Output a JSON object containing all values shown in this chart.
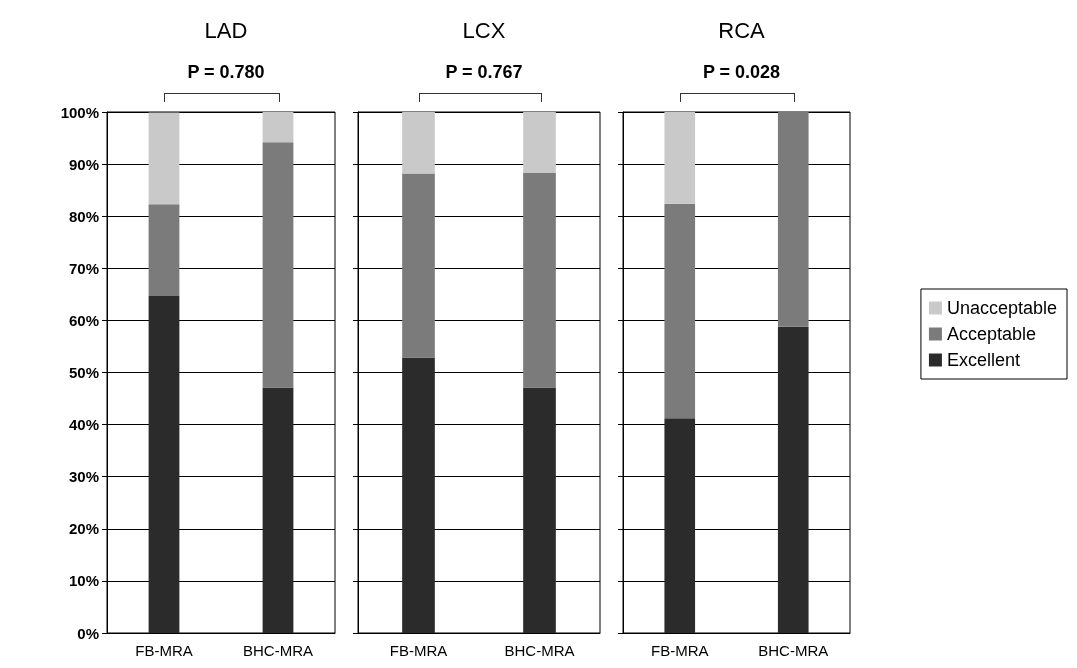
{
  "chart_data": [
    {
      "type": "bar",
      "title": "LAD",
      "annotations": [
        "P = 0.780"
      ],
      "categories": [
        "FB-MRA",
        "BHC-MRA"
      ],
      "stacked": true,
      "ylim": [
        0,
        100
      ],
      "yticks": [
        {
          "value": 0,
          "label": "0%"
        },
        {
          "value": 10,
          "label": "10%"
        },
        {
          "value": 20,
          "label": "20%"
        },
        {
          "value": 30,
          "label": "30%"
        },
        {
          "value": 40,
          "label": "40%"
        },
        {
          "value": 50,
          "label": "50%"
        },
        {
          "value": 60,
          "label": "60%"
        },
        {
          "value": 70,
          "label": "70%"
        },
        {
          "value": 80,
          "label": "80%"
        },
        {
          "value": 90,
          "label": "90%"
        },
        {
          "value": 100,
          "label": "100%"
        }
      ],
      "grid": "y",
      "series": [
        {
          "color": "#2b2b2b",
          "values": [
            64.7,
            47.1
          ]
        },
        {
          "color": "#7b7b7b",
          "values": [
            17.6,
            47.1
          ]
        },
        {
          "color": "#c9c9c9",
          "values": [
            17.6,
            5.9
          ]
        }
      ]
    },
    {
      "type": "bar",
      "title": "LCX",
      "annotations": [
        "P = 0.767"
      ],
      "categories": [
        "FB-MRA",
        "BHC-MRA"
      ],
      "stacked": true,
      "ylim": [
        0,
        100
      ],
      "yticks": [
        0,
        10,
        20,
        30,
        40,
        50,
        60,
        70,
        80,
        90,
        100
      ],
      "grid": "y",
      "tick_labels": "x",
      "series": [
        {
          "color": "#2b2b2b",
          "values": [
            52.9,
            47.1
          ]
        },
        {
          "color": "#7b7b7b",
          "values": [
            35.3,
            41.2
          ]
        },
        {
          "color": "#c9c9c9",
          "values": [
            11.8,
            11.8
          ]
        }
      ]
    },
    {
      "type": "bar",
      "title": "RCA",
      "annotations": [
        "P = 0.028"
      ],
      "categories": [
        "FB-MRA",
        "BHC-MRA"
      ],
      "stacked": true,
      "ylim": [
        0,
        100
      ],
      "yticks": [
        0,
        10,
        20,
        30,
        40,
        50,
        60,
        70,
        80,
        90,
        100
      ],
      "grid": "y",
      "legend": "right",
      "tick_labels": "x",
      "series": [
        {
          "name": "Excellent",
          "color": "#2b2b2b",
          "values": [
            41.2,
            58.8
          ]
        },
        {
          "name": "Acceptable",
          "color": "#7b7b7b",
          "values": [
            41.2,
            41.2
          ]
        },
        {
          "name": "Unacceptable",
          "color": "#c9c9c9",
          "values": [
            17.6,
            0
          ]
        }
      ]
    }
  ]
}
